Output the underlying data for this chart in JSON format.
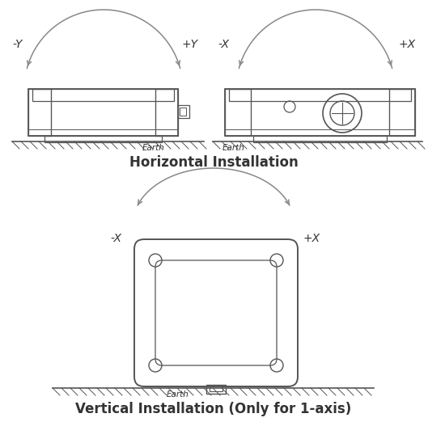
{
  "bg_color": "#ffffff",
  "line_color": "#555555",
  "arrow_color": "#888888",
  "text_color": "#333333",
  "title1": "Horizontal Installation",
  "title2": "Vertical Installation (Only for 1-axis)",
  "label_neg_y": "-Y",
  "label_pos_y": "+Y",
  "label_neg_x1": "-X",
  "label_pos_x1": "+X",
  "label_neg_x2": "-X",
  "label_pos_x2": "+X",
  "earth_label": "Earth",
  "title_fontsize": 12,
  "label_fontsize": 10,
  "earth_fontsize": 7.5
}
